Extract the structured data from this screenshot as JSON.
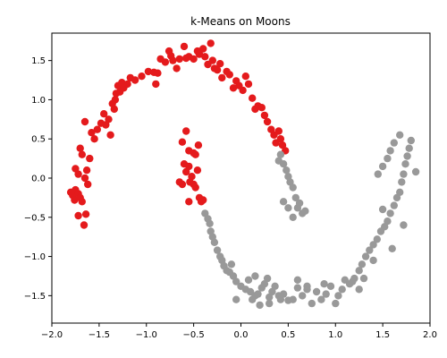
{
  "chart_data": {
    "type": "scatter",
    "title": "k-Means on Moons",
    "xlabel": "",
    "ylabel": "",
    "xlim": [
      -2.0,
      2.0
    ],
    "ylim": [
      -1.85,
      1.85
    ],
    "xticks": [
      -2.0,
      -1.5,
      -1.0,
      -0.5,
      0.0,
      0.5,
      1.0,
      1.5,
      2.0
    ],
    "yticks": [
      -1.5,
      -1.0,
      -0.5,
      0.0,
      0.5,
      1.0,
      1.5
    ],
    "xtick_labels": [
      "−2.0",
      "−1.5",
      "−1.0",
      "−0.5",
      "0.0",
      "0.5",
      "1.0",
      "1.5",
      "2.0"
    ],
    "ytick_labels": [
      "−1.5",
      "−1.0",
      "−0.5",
      "0.0",
      "0.5",
      "1.0",
      "1.5"
    ],
    "grid": false,
    "legend": "none",
    "clusters": [
      {
        "color": "#e41a1c",
        "points": [
          [
            -1.8,
            -0.18
          ],
          [
            -1.78,
            -0.22
          ],
          [
            -1.76,
            -0.28
          ],
          [
            -1.75,
            -0.15
          ],
          [
            -1.72,
            -0.2
          ],
          [
            -1.7,
            -0.25
          ],
          [
            -1.72,
            -0.48
          ],
          [
            -1.68,
            -0.3
          ],
          [
            -1.66,
            -0.6
          ],
          [
            -1.64,
            -0.46
          ],
          [
            -1.75,
            0.12
          ],
          [
            -1.72,
            0.05
          ],
          [
            -1.7,
            0.38
          ],
          [
            -1.68,
            0.3
          ],
          [
            -1.65,
            0.0
          ],
          [
            -1.63,
            0.1
          ],
          [
            -1.6,
            0.25
          ],
          [
            -1.62,
            -0.08
          ],
          [
            -1.65,
            0.72
          ],
          [
            -1.58,
            0.58
          ],
          [
            -1.55,
            0.5
          ],
          [
            -1.52,
            0.62
          ],
          [
            -1.48,
            0.7
          ],
          [
            -1.45,
            0.82
          ],
          [
            -1.43,
            0.68
          ],
          [
            -1.4,
            0.75
          ],
          [
            -1.38,
            0.55
          ],
          [
            -1.36,
            0.95
          ],
          [
            -1.34,
            0.88
          ],
          [
            -1.33,
            1.0
          ],
          [
            -1.32,
            1.08
          ],
          [
            -1.3,
            1.18
          ],
          [
            -1.28,
            1.1
          ],
          [
            -1.26,
            1.22
          ],
          [
            -1.24,
            1.15
          ],
          [
            -1.2,
            1.2
          ],
          [
            -1.17,
            1.28
          ],
          [
            -1.12,
            1.25
          ],
          [
            -1.05,
            1.3
          ],
          [
            -0.98,
            1.36
          ],
          [
            -0.92,
            1.35
          ],
          [
            -0.88,
            1.34
          ],
          [
            -0.9,
            1.2
          ],
          [
            -0.85,
            1.52
          ],
          [
            -0.8,
            1.48
          ],
          [
            -0.76,
            1.62
          ],
          [
            -0.74,
            1.56
          ],
          [
            -0.72,
            1.5
          ],
          [
            -0.68,
            1.4
          ],
          [
            -0.65,
            1.52
          ],
          [
            -0.6,
            1.68
          ],
          [
            -0.58,
            1.53
          ],
          [
            -0.55,
            1.55
          ],
          [
            -0.5,
            1.52
          ],
          [
            -0.46,
            1.62
          ],
          [
            -0.44,
            1.58
          ],
          [
            -0.4,
            1.65
          ],
          [
            -0.38,
            1.55
          ],
          [
            -0.35,
            1.45
          ],
          [
            -0.32,
            1.72
          ],
          [
            -0.3,
            1.5
          ],
          [
            -0.28,
            1.4
          ],
          [
            -0.25,
            1.38
          ],
          [
            -0.22,
            1.46
          ],
          [
            -0.2,
            1.28
          ],
          [
            -0.15,
            1.36
          ],
          [
            -0.12,
            1.32
          ],
          [
            -0.08,
            1.15
          ],
          [
            -0.05,
            1.24
          ],
          [
            -0.02,
            1.18
          ],
          [
            0.02,
            1.12
          ],
          [
            0.05,
            1.3
          ],
          [
            0.08,
            1.2
          ],
          [
            0.12,
            1.02
          ],
          [
            0.15,
            0.88
          ],
          [
            0.18,
            0.92
          ],
          [
            0.22,
            0.9
          ],
          [
            0.25,
            0.8
          ],
          [
            0.28,
            0.72
          ],
          [
            0.32,
            0.62
          ],
          [
            0.35,
            0.55
          ],
          [
            0.37,
            0.45
          ],
          [
            0.4,
            0.6
          ],
          [
            0.42,
            0.5
          ],
          [
            0.44,
            0.42
          ],
          [
            0.47,
            0.35
          ],
          [
            -0.62,
            0.46
          ],
          [
            -0.58,
            0.6
          ],
          [
            -0.55,
            0.35
          ],
          [
            -0.5,
            0.32
          ],
          [
            -0.48,
            0.3
          ],
          [
            -0.45,
            0.42
          ],
          [
            -0.6,
            0.18
          ],
          [
            -0.58,
            0.08
          ],
          [
            -0.55,
            0.15
          ],
          [
            -0.54,
            -0.05
          ],
          [
            -0.52,
            0.02
          ],
          [
            -0.5,
            -0.08
          ],
          [
            -0.48,
            -0.12
          ],
          [
            -0.46,
            0.1
          ],
          [
            -0.44,
            -0.25
          ],
          [
            -0.42,
            -0.3
          ],
          [
            -0.4,
            -0.28
          ],
          [
            -0.55,
            -0.3
          ],
          [
            -0.62,
            -0.08
          ],
          [
            -0.65,
            -0.05
          ]
        ]
      },
      {
        "color": "#999999",
        "points": [
          [
            -0.38,
            -0.45
          ],
          [
            -0.35,
            -0.52
          ],
          [
            -0.33,
            -0.58
          ],
          [
            -0.32,
            -0.68
          ],
          [
            -0.3,
            -0.75
          ],
          [
            -0.28,
            -0.82
          ],
          [
            -0.25,
            -0.92
          ],
          [
            -0.22,
            -1.0
          ],
          [
            -0.2,
            -1.05
          ],
          [
            -0.18,
            -1.12
          ],
          [
            -0.15,
            -1.18
          ],
          [
            -0.12,
            -1.2
          ],
          [
            -0.1,
            -1.1
          ],
          [
            -0.08,
            -1.25
          ],
          [
            -0.05,
            -1.32
          ],
          [
            0.0,
            -1.38
          ],
          [
            0.05,
            -1.42
          ],
          [
            0.08,
            -1.3
          ],
          [
            0.1,
            -1.45
          ],
          [
            0.12,
            -1.55
          ],
          [
            0.15,
            -1.5
          ],
          [
            0.18,
            -1.48
          ],
          [
            0.2,
            -1.62
          ],
          [
            0.22,
            -1.4
          ],
          [
            0.25,
            -1.35
          ],
          [
            0.28,
            -1.28
          ],
          [
            0.3,
            -1.52
          ],
          [
            0.33,
            -1.45
          ],
          [
            0.36,
            -1.38
          ],
          [
            0.4,
            -1.5
          ],
          [
            0.42,
            -1.55
          ],
          [
            0.45,
            -1.48
          ],
          [
            0.5,
            -1.56
          ],
          [
            0.55,
            -1.55
          ],
          [
            0.6,
            -1.4
          ],
          [
            0.65,
            -1.5
          ],
          [
            0.7,
            -1.42
          ],
          [
            0.75,
            -1.6
          ],
          [
            0.8,
            -1.45
          ],
          [
            0.85,
            -1.55
          ],
          [
            0.9,
            -1.48
          ],
          [
            0.95,
            -1.38
          ],
          [
            1.0,
            -1.6
          ],
          [
            1.03,
            -1.5
          ],
          [
            1.07,
            -1.42
          ],
          [
            1.1,
            -1.3
          ],
          [
            1.15,
            -1.35
          ],
          [
            1.2,
            -1.28
          ],
          [
            1.25,
            -1.18
          ],
          [
            1.28,
            -1.1
          ],
          [
            1.32,
            -1.0
          ],
          [
            1.36,
            -0.92
          ],
          [
            1.4,
            -0.85
          ],
          [
            1.44,
            -0.78
          ],
          [
            1.48,
            -0.68
          ],
          [
            1.52,
            -0.62
          ],
          [
            1.55,
            -0.55
          ],
          [
            1.58,
            -0.45
          ],
          [
            1.62,
            -0.35
          ],
          [
            1.65,
            -0.25
          ],
          [
            1.68,
            -0.18
          ],
          [
            1.7,
            -0.05
          ],
          [
            1.72,
            0.05
          ],
          [
            1.74,
            0.18
          ],
          [
            1.76,
            0.28
          ],
          [
            1.78,
            0.38
          ],
          [
            1.8,
            0.48
          ],
          [
            1.85,
            0.08
          ],
          [
            1.68,
            0.55
          ],
          [
            1.62,
            0.45
          ],
          [
            1.58,
            0.35
          ],
          [
            1.55,
            0.25
          ],
          [
            1.5,
            0.15
          ],
          [
            1.45,
            0.05
          ],
          [
            0.4,
            0.22
          ],
          [
            0.42,
            0.3
          ],
          [
            0.45,
            0.18
          ],
          [
            0.48,
            0.1
          ],
          [
            0.5,
            0.02
          ],
          [
            0.52,
            -0.05
          ],
          [
            0.55,
            -0.12
          ],
          [
            0.58,
            -0.25
          ],
          [
            0.6,
            -0.38
          ],
          [
            0.62,
            -0.32
          ],
          [
            0.65,
            -0.45
          ],
          [
            0.68,
            -0.42
          ],
          [
            0.55,
            -0.5
          ],
          [
            0.5,
            -0.38
          ],
          [
            0.45,
            -0.3
          ],
          [
            -0.05,
            -1.55
          ],
          [
            0.3,
            -1.6
          ],
          [
            0.7,
            -1.38
          ],
          [
            1.25,
            -1.42
          ],
          [
            1.4,
            -1.05
          ],
          [
            1.6,
            -0.9
          ],
          [
            0.88,
            -1.35
          ],
          [
            0.6,
            -1.3
          ],
          [
            0.15,
            -1.25
          ],
          [
            1.18,
            -1.32
          ],
          [
            1.3,
            -1.28
          ],
          [
            1.72,
            -0.6
          ],
          [
            1.5,
            -0.4
          ]
        ]
      }
    ]
  }
}
